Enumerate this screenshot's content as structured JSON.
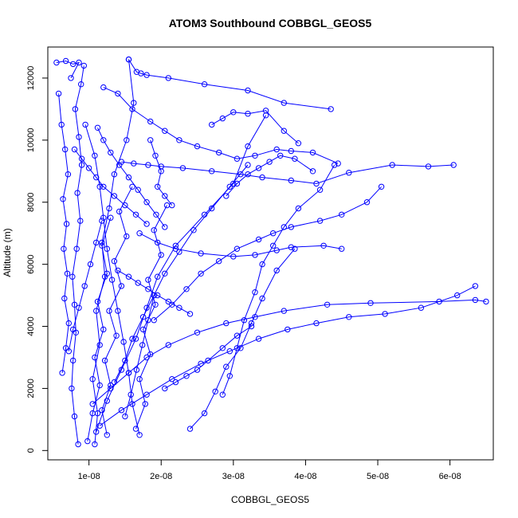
{
  "chart_data": {
    "type": "scatter",
    "title": "ATOM3 Southbound COBBGL_GEOS5",
    "xlabel": "COBBGL_GEOS5",
    "ylabel": "Altitude (m)",
    "xlim": [
      4.3e-09,
      6.6e-08
    ],
    "ylim": [
      -300,
      13000
    ],
    "x_ticks": [
      1e-08,
      2e-08,
      3e-08,
      4e-08,
      5e-08,
      6e-08
    ],
    "x_tick_labels": [
      "1e-08",
      "2e-08",
      "3e-08",
      "4e-08",
      "5e-08",
      "6e-08"
    ],
    "y_ticks": [
      0,
      2000,
      4000,
      6000,
      8000,
      10000,
      12000
    ],
    "y_tick_labels": [
      "0",
      "2000",
      "4000",
      "6000",
      "8000",
      "10000",
      "12000"
    ],
    "color": "#0000ff",
    "markers": "open-circle",
    "line_style": "solid",
    "grid": false,
    "legend": "none",
    "series": [
      {
        "x": [
          8.5e-09,
          8e-09,
          7.6e-09,
          7.8e-09,
          8.2e-09,
          8e-09,
          7.7e-09,
          8.3e-09,
          8.8e-09,
          8.4e-09,
          9e-09,
          8.6e-09,
          8.1e-09,
          8.9e-09,
          9.3e-09
        ],
        "y": [
          200,
          1100,
          2000,
          2900,
          3800,
          4700,
          5600,
          6500,
          7400,
          8300,
          9200,
          10100,
          11000,
          11800,
          12400
        ]
      },
      {
        "x": [
          1.08e-08,
          1.12e-08,
          1.05e-08,
          1.15e-08,
          1.1e-08,
          1.22e-08,
          1.18e-08,
          1.28e-08,
          1.35e-08,
          1.52e-08,
          1.62e-08,
          1.55e-08
        ],
        "y": [
          200,
          1200,
          2300,
          3400,
          4500,
          5600,
          6700,
          7800,
          8900,
          10000,
          11200,
          12600
        ]
      },
      {
        "x": [
          1.7e-08,
          1.6e-08,
          1.55e-08,
          1.48e-08,
          1.4e-08,
          1.32e-08,
          1.25e-08,
          1.2e-08,
          1.15e-08,
          1.08e-08,
          9.5e-09
        ],
        "y": [
          500,
          1500,
          2500,
          3500,
          4500,
          5500,
          6500,
          7500,
          8500,
          9500,
          10500
        ]
      },
      {
        "x": [
          1.1e-08,
          1.25e-08,
          1.45e-08,
          1.65e-08,
          1.8e-08,
          1.95e-08,
          2.2e-08,
          2.6e-08,
          3e-08,
          3.2e-08,
          3.45e-08
        ],
        "y": [
          600,
          1600,
          2600,
          3600,
          4600,
          5600,
          6600,
          7600,
          8600,
          9800,
          10800
        ]
      },
      {
        "x": [
          6.3e-09,
          6.8e-09,
          7.2e-09,
          6.6e-09,
          7e-09,
          6.5e-09,
          6.9e-09,
          6.4e-09,
          7.1e-09,
          6.7e-09,
          6.2e-09,
          5.8e-09
        ],
        "y": [
          2500,
          3300,
          4100,
          4900,
          5700,
          6500,
          7300,
          8100,
          8900,
          9700,
          10500,
          11500
        ]
      },
      {
        "x": [
          5.5e-09,
          6.8e-09,
          7.8e-09,
          8.6e-09,
          7.5e-09
        ],
        "y": [
          12500,
          12550,
          12450,
          12500,
          12000
        ]
      },
      {
        "x": [
          1.55e-08,
          1.66e-08,
          1.72e-08,
          1.8e-08,
          2.1e-08,
          2.6e-08,
          3.2e-08,
          3.7e-08,
          4.35e-08
        ],
        "y": [
          12600,
          12200,
          12150,
          12100,
          12000,
          11800,
          11600,
          11200,
          11000
        ]
      },
      {
        "x": [
          1.2e-08,
          1.4e-08,
          1.6e-08,
          1.85e-08,
          2.05e-08,
          2.25e-08,
          2.5e-08,
          2.8e-08,
          3.05e-08,
          3.3e-08,
          3.6e-08,
          3.8e-08,
          4.1e-08,
          4.45e-08
        ],
        "y": [
          11700,
          11500,
          11000,
          10600,
          10300,
          10000,
          9800,
          9600,
          9400,
          9500,
          9700,
          9650,
          9600,
          9250
        ]
      },
      {
        "x": [
          1.45e-08,
          1.62e-08,
          1.82e-08,
          2e-08,
          2.3e-08,
          2.7e-08,
          3.1e-08,
          3.4e-08,
          3.8e-08,
          4.15e-08,
          4.6e-08,
          5.2e-08,
          5.7e-08,
          6.05e-08
        ],
        "y": [
          9300,
          9250,
          9200,
          9150,
          9100,
          9000,
          8900,
          8800,
          8700,
          8600,
          8950,
          9200,
          9150,
          9200
        ]
      },
      {
        "x": [
          1.05e-08,
          1.3e-08,
          1.55e-08,
          1.8e-08,
          2.1e-08,
          2.5e-08,
          2.9e-08,
          3.3e-08,
          3.7e-08,
          4.3e-08,
          4.9e-08,
          5.85e-08,
          6.35e-08,
          6.5e-08
        ],
        "y": [
          1500,
          2000,
          2500,
          3000,
          3400,
          3800,
          4100,
          4300,
          4500,
          4700,
          4750,
          4800,
          4850,
          4800
        ]
      },
      {
        "x": [
          1.15e-08,
          1.45e-08,
          1.8e-08,
          2.15e-08,
          2.55e-08,
          2.95e-08,
          3.35e-08,
          3.75e-08,
          4.15e-08,
          4.6e-08,
          5.1e-08,
          5.6e-08,
          6.1e-08,
          6.35e-08
        ],
        "y": [
          800,
          1300,
          1800,
          2300,
          2800,
          3200,
          3600,
          3900,
          4100,
          4300,
          4400,
          4600,
          5000,
          5300
        ]
      },
      {
        "x": [
          1.7e-08,
          1.95e-08,
          2.2e-08,
          2.55e-08,
          3e-08,
          3.3e-08,
          3.6e-08,
          3.8e-08,
          4.25e-08,
          4.5e-08
        ],
        "y": [
          7000,
          6700,
          6500,
          6350,
          6250,
          6300,
          6450,
          6550,
          6600,
          6500
        ]
      },
      {
        "x": [
          1.9e-08,
          2.15e-08,
          2.35e-08,
          2.55e-08,
          2.8e-08,
          3.05e-08,
          3.35e-08,
          3.55e-08,
          3.8e-08,
          4.2e-08,
          4.5e-08,
          4.85e-08,
          5.05e-08
        ],
        "y": [
          4200,
          4700,
          5200,
          5700,
          6100,
          6500,
          6800,
          7000,
          7200,
          7400,
          7600,
          8000,
          8500
        ]
      },
      {
        "x": [
          2.85e-08,
          2.95e-08,
          3.05e-08,
          3.15e-08,
          3.3e-08,
          3.4e-08,
          3.55e-08,
          3.7e-08,
          3.9e-08,
          4.2e-08,
          4.4e-08
        ],
        "y": [
          1800,
          2400,
          3300,
          4200,
          5100,
          6000,
          6600,
          7200,
          7800,
          8400,
          9200
        ]
      },
      {
        "x": [
          2.4e-08,
          2.6e-08,
          2.75e-08,
          2.9e-08,
          3.1e-08,
          3.25e-08,
          3.4e-08,
          3.6e-08,
          3.85e-08
        ],
        "y": [
          700,
          1200,
          1900,
          2700,
          3300,
          4100,
          4900,
          5800,
          6500
        ]
      },
      {
        "x": [
          1.35e-08,
          1.5e-08,
          1.6e-08,
          1.75e-08,
          1.9e-08,
          2.05e-08,
          2.25e-08,
          2.45e-08,
          2.7e-08,
          2.95e-08,
          3.2e-08
        ],
        "y": [
          2200,
          2900,
          3600,
          4300,
          5000,
          5700,
          6400,
          7100,
          7800,
          8500,
          9200
        ]
      },
      {
        "x": [
          1.25e-08,
          1.18e-08,
          1.3e-08,
          1.22e-08,
          1.38e-08,
          1.28e-08,
          1.45e-08,
          1.35e-08,
          1.52e-08,
          1.42e-08,
          1.6e-08
        ],
        "y": [
          500,
          1300,
          2100,
          2900,
          3700,
          4500,
          5300,
          6100,
          6900,
          7700,
          8500
        ]
      },
      {
        "x": [
          1.65e-08,
          1.78e-08,
          1.7e-08,
          1.85e-08,
          1.75e-08,
          1.92e-08,
          1.82e-08,
          2e-08,
          1.9e-08,
          2.08e-08
        ],
        "y": [
          700,
          1500,
          2300,
          3100,
          3900,
          4700,
          5500,
          6300,
          7100,
          7900
        ]
      },
      {
        "x": [
          1.12e-08,
          1.2e-08,
          1.3e-08,
          1.42e-08,
          1.55e-08,
          1.68e-08,
          1.8e-08,
          1.93e-08,
          2.05e-08
        ],
        "y": [
          10400,
          10000,
          9600,
          9200,
          8800,
          8400,
          8000,
          7600,
          7200
        ]
      },
      {
        "x": [
          9.8e-09,
          1.05e-08,
          1.15e-08,
          1.08e-08,
          1.2e-08,
          1.12e-08,
          1.25e-08,
          1.18e-08,
          1.3e-08
        ],
        "y": [
          300,
          1200,
          2100,
          3000,
          3900,
          4800,
          5700,
          6600,
          7500
        ]
      },
      {
        "x": [
          8e-09,
          9e-09,
          1e-08,
          1.1e-08,
          1.2e-08,
          1.35e-08,
          1.5e-08,
          1.65e-08,
          1.8e-08
        ],
        "y": [
          9700,
          9400,
          9100,
          8800,
          8500,
          8200,
          7900,
          7600,
          7300
        ]
      },
      {
        "x": [
          1.4e-08,
          1.55e-08,
          1.68e-08,
          1.82e-08,
          1.95e-08,
          2.1e-08,
          2.25e-08,
          2.4e-08
        ],
        "y": [
          5800,
          5600,
          5400,
          5200,
          5000,
          4800,
          4600,
          4400
        ]
      },
      {
        "x": [
          2.7e-08,
          2.85e-08,
          3e-08,
          3.2e-08,
          3.45e-08,
          3.7e-08,
          3.9e-08
        ],
        "y": [
          10500,
          10700,
          10900,
          10850,
          10950,
          10300,
          9900
        ]
      },
      {
        "x": [
          2.9e-08,
          3.05e-08,
          3.2e-08,
          3.35e-08,
          3.5e-08,
          3.65e-08,
          3.85e-08,
          4.1e-08
        ],
        "y": [
          8200,
          8600,
          8900,
          9100,
          9300,
          9500,
          9400,
          9000
        ]
      },
      {
        "x": [
          2.05e-08,
          2.2e-08,
          2.35e-08,
          2.5e-08,
          2.65e-08,
          2.85e-08,
          3.05e-08,
          3.25e-08
        ],
        "y": [
          2000,
          2200,
          2400,
          2600,
          2900,
          3300,
          3700,
          4000
        ]
      },
      {
        "x": [
          7.2e-09,
          7.8e-09,
          8.6e-09,
          9.4e-09,
          1.02e-08,
          1.1e-08,
          1.18e-08
        ],
        "y": [
          3200,
          3900,
          4600,
          5300,
          6000,
          6700,
          7400
        ]
      },
      {
        "x": [
          1.85e-08,
          1.92e-08,
          2e-08,
          1.95e-08,
          2.05e-08,
          2.15e-08
        ],
        "y": [
          10000,
          9500,
          9000,
          8500,
          8200,
          7900
        ]
      },
      {
        "x": [
          1.5e-08,
          1.58e-08,
          1.66e-08,
          1.74e-08,
          1.82e-08,
          1.9e-08
        ],
        "y": [
          1100,
          1800,
          2600,
          3400,
          4200,
          5000
        ]
      }
    ]
  }
}
